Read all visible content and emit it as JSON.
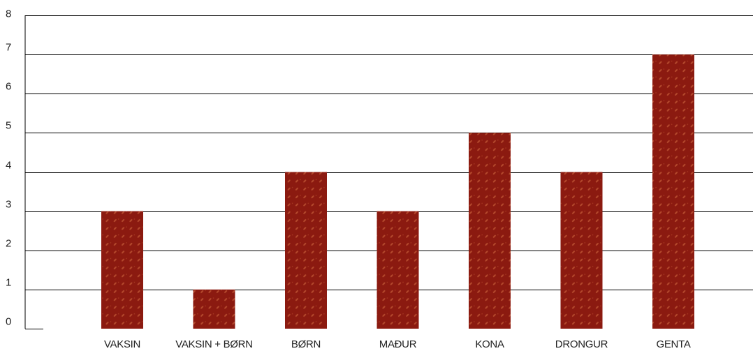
{
  "chart_data": {
    "type": "bar",
    "categories": [
      "VAKSIN",
      "VAKSIN + BØRN",
      "BØRN",
      "MAÐUR",
      "KONA",
      "DRONGUR",
      "GENTA"
    ],
    "values": [
      3,
      1,
      4,
      3,
      5,
      4,
      7
    ],
    "ylim": [
      0,
      8
    ],
    "yticks": [
      "0",
      "1",
      "2",
      "3",
      "4",
      "5",
      "6",
      "7",
      "8"
    ],
    "grid": true,
    "legend": "none",
    "colors": {
      "bar": "#8b1a10",
      "bar_pattern": "#b3482c",
      "grid": "#000000"
    }
  }
}
